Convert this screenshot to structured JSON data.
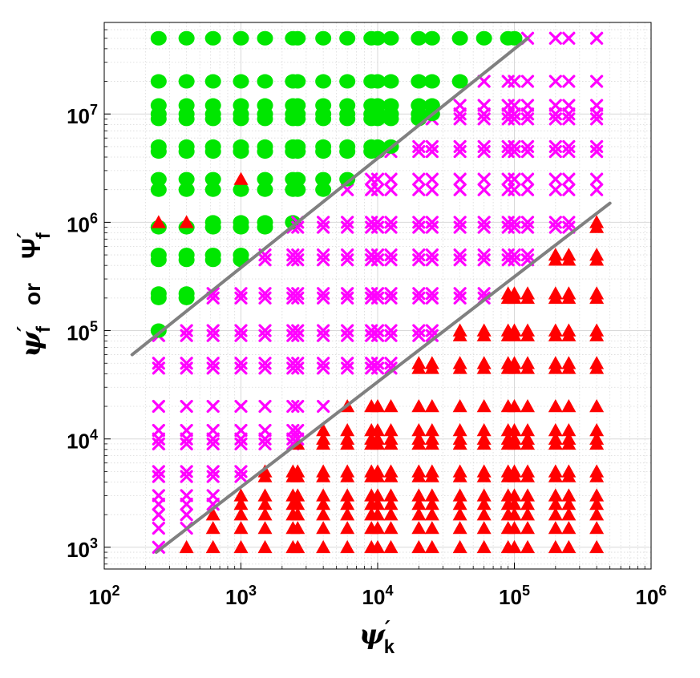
{
  "chart_data": {
    "type": "scatter",
    "xscale": "log",
    "yscale": "log",
    "xlim": [
      100,
      1000000
    ],
    "ylim": [
      630,
      70000000
    ],
    "grid": true,
    "minor_grid": true,
    "title": "",
    "xlabel": {
      "main": "ψ",
      "sub": "k",
      "prime": "′"
    },
    "ylabel": {
      "main1": "ψ",
      "sub1": "f",
      "prime1": "′",
      "or": "or",
      "main2": "Ψ",
      "sub2": "f",
      "prime2": "′"
    },
    "x_ticks": [
      {
        "value": 100,
        "base": "10",
        "exp": "2"
      },
      {
        "value": 1000,
        "base": "10",
        "exp": "3"
      },
      {
        "value": 10000,
        "base": "10",
        "exp": "4"
      },
      {
        "value": 100000,
        "base": "10",
        "exp": "5"
      },
      {
        "value": 1000000,
        "base": "10",
        "exp": "6"
      }
    ],
    "y_ticks": [
      {
        "value": 1000,
        "base": "10",
        "exp": "3"
      },
      {
        "value": 10000,
        "base": "10",
        "exp": "4"
      },
      {
        "value": 100000,
        "base": "10",
        "exp": "5"
      },
      {
        "value": 1000000,
        "base": "10",
        "exp": "6"
      },
      {
        "value": 10000000,
        "base": "10",
        "exp": "7"
      }
    ],
    "colors": {
      "circle": "#00e600",
      "cross": "#ff00ff",
      "triangle": "#ff0000",
      "line": "#808080",
      "axis": "#000000",
      "grid": "#d9d9d9"
    },
    "x_grid": [
      250,
      400,
      625,
      1000,
      1500,
      2400,
      2600,
      4000,
      6000,
      9000,
      10000,
      12500,
      20000,
      25000,
      40000,
      60000,
      90000,
      100000,
      125000,
      200000,
      250000,
      400000
    ],
    "y_grid": [
      1000,
      1500,
      2000,
      2500,
      3000,
      4500,
      5000,
      9000,
      10000,
      12000,
      20000,
      45000,
      50000,
      90000,
      100000,
      200000,
      220000,
      450000,
      500000,
      900000,
      1000000,
      2000000,
      2500000,
      4500000,
      5000000,
      9000000,
      10000000,
      12000000,
      20000000,
      50000000
    ],
    "lines": [
      {
        "x": [
          160,
          125000
        ],
        "y": [
          60000,
          50000000
        ]
      },
      {
        "x": [
          240,
          500000
        ],
        "y": [
          900,
          1500000
        ]
      }
    ],
    "markers": [
      {
        "x": 250,
        "y": 1000000,
        "shape": "triangle"
      },
      {
        "x": 400,
        "y": 1000000,
        "shape": "triangle"
      },
      {
        "x": 1000,
        "y": 2500000,
        "shape": "triangle"
      }
    ],
    "series": [
      {
        "shape": "circle",
        "region": "upper-left, above the upper line"
      },
      {
        "shape": "cross",
        "region": "between the two lines"
      },
      {
        "shape": "triangle",
        "region": "lower-right, below the lower line"
      }
    ]
  }
}
